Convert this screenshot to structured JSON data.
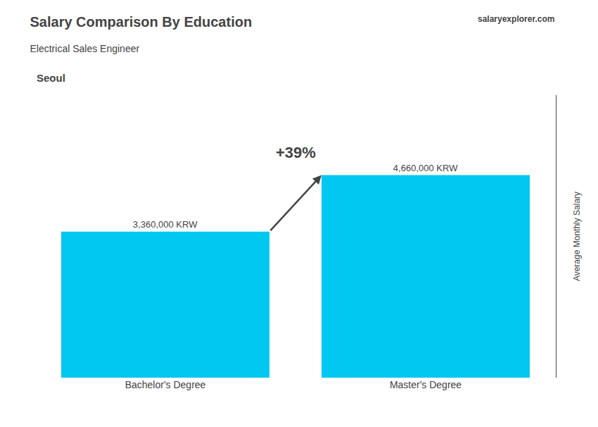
{
  "chart_data": {
    "type": "bar",
    "title": "Salary Comparison By Education",
    "subtitle": "Electrical Sales Engineer",
    "ylabel": "Average Monthly Salary",
    "annotations": [
      "Seoul",
      "salary",
      "explorer.com",
      "+39%"
    ],
    "categories": [
      "Bachelor's Degree",
      "Master's Degree"
    ],
    "values": [
      3360000,
      4660000
    ],
    "value_labels": [
      "3,360,000 KRW",
      "4,660,000 KRW"
    ],
    "color": "#00C8F0",
    "ylim": [
      0,
      6500000
    ],
    "data_labels": true,
    "tick_labels": "x",
    "grid": false
  }
}
